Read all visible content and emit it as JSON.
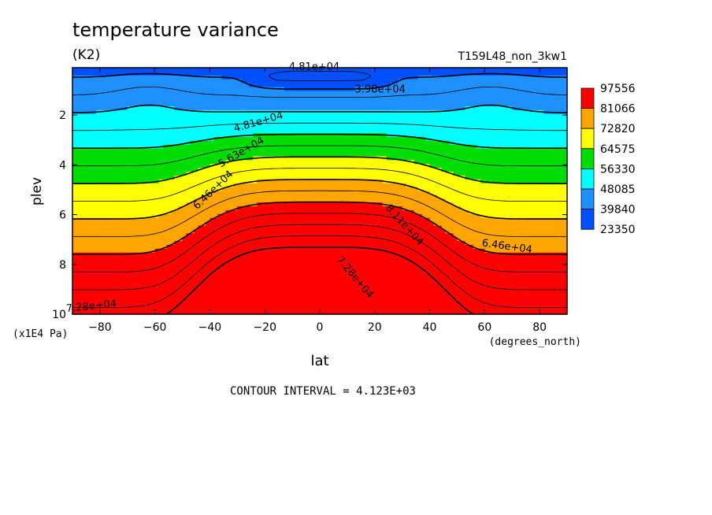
{
  "chart_data": {
    "type": "contour",
    "title": "temperature variance",
    "subtitle": "(K2)",
    "run_label": "T159L48_non_3kw1",
    "xlabel": "lat",
    "x_units": "(degrees_north)",
    "ylabel": "plev",
    "y_units": "(x1E4 Pa)",
    "xlim": [
      -90,
      90
    ],
    "ylim": [
      10,
      0.1
    ],
    "x_ticks": [
      "-80",
      "-60",
      "-40",
      "-20",
      "0",
      "20",
      "40",
      "60",
      "80"
    ],
    "y_ticks": [
      "2",
      "4",
      "6",
      "8",
      "10"
    ],
    "contour_interval_text": "CONTOUR INTERVAL = 4.123E+03",
    "colorbar": {
      "labels": [
        "97556",
        "81066",
        "72820",
        "64575",
        "56330",
        "48085",
        "39840",
        "23350"
      ],
      "colors": [
        "#ff0000",
        "#ffa500",
        "#ffff00",
        "#00dd00",
        "#00ffff",
        "#1e90ff",
        "#0050ff"
      ]
    },
    "contour_labels": [
      "4.81e+04",
      "3.98e+04",
      "4.81e+04",
      "5.63e+04",
      "6.46e+04",
      "7.28e+04",
      "6.46e+04",
      "8.11e+04",
      "7.28e+04"
    ],
    "field_model": {
      "levels": [
        23350,
        35717,
        39840,
        43963,
        48085,
        52208,
        56330,
        60453,
        64575,
        68698,
        72820,
        76943,
        81066,
        85189,
        89311,
        93434,
        97556
      ],
      "min_value": 37000,
      "max_value": 94000
    }
  }
}
